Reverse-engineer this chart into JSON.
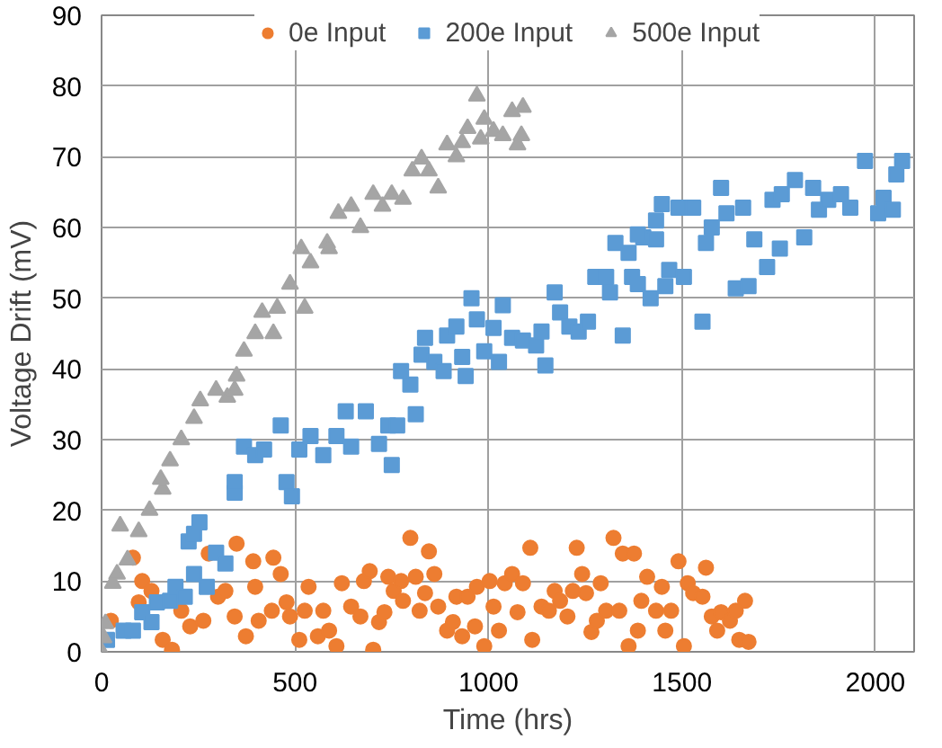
{
  "chart_data": {
    "type": "scatter",
    "xlabel": "Time (hrs)",
    "ylabel": "Voltage Drift (mV)",
    "xlim": [
      0,
      2100
    ],
    "ylim": [
      0,
      90
    ],
    "xticks": [
      0,
      500,
      1000,
      1500,
      2000
    ],
    "yticks": [
      0,
      10,
      20,
      30,
      40,
      50,
      60,
      70,
      80,
      90
    ],
    "grid": true,
    "legend": "top",
    "series": [
      {
        "name": "0e Input",
        "color": "#ed7d31",
        "marker": "circle",
        "x": [
          24,
          81,
          105,
          96,
          129,
          158,
          182,
          206,
          229,
          263,
          277,
          301,
          320,
          349,
          344,
          373,
          397,
          392,
          406,
          440,
          444,
          463,
          478,
          487,
          511,
          525,
          535,
          559,
          573,
          588,
          607,
          621,
          645,
          669,
          678,
          693,
          702,
          717,
          731,
          741,
          755,
          774,
          779,
          798,
          812,
          822,
          836,
          846,
          860,
          870,
          893,
          908,
          917,
          932,
          946,
          965,
          970,
          989,
          1003,
          1013,
          1027,
          1042,
          1061,
          1075,
          1089,
          1108,
          1113,
          1137,
          1156,
          1171,
          1185,
          1204,
          1218,
          1228,
          1242,
          1252,
          1266,
          1280,
          1290,
          1304,
          1323,
          1338,
          1347,
          1362,
          1376,
          1386,
          1395,
          1410,
          1433,
          1448,
          1457,
          1472,
          1491,
          1505,
          1515,
          1529,
          1553,
          1562,
          1577,
          1591,
          1601,
          1624,
          1639,
          1648,
          1663,
          1672
        ],
        "values": [
          4.4,
          13.3,
          10,
          7,
          8.6,
          1.7,
          0.3,
          5.8,
          3.6,
          4.4,
          13.9,
          7.8,
          8.6,
          15.3,
          5,
          2.2,
          9.2,
          12.8,
          4.4,
          5.8,
          13.3,
          11,
          7,
          5,
          1.7,
          5.8,
          9.2,
          2.2,
          5.8,
          3,
          0.8,
          9.7,
          6.4,
          5,
          10,
          11.4,
          0.3,
          4.2,
          5.6,
          10.6,
          8.6,
          10,
          7.2,
          16.1,
          10.6,
          5.8,
          8.3,
          14.2,
          11,
          6.4,
          3,
          4.2,
          7.8,
          2.2,
          7.8,
          3.6,
          9.2,
          0.8,
          10,
          6.4,
          3,
          9.7,
          11,
          5.6,
          9.7,
          14.7,
          1.7,
          6.4,
          5.8,
          8.6,
          7.2,
          5,
          8.6,
          14.7,
          11,
          8.3,
          2.8,
          4.4,
          9.7,
          5.8,
          16.1,
          5.8,
          13.9,
          0.8,
          13.9,
          3,
          7.2,
          10.6,
          5.8,
          9.2,
          3,
          5.8,
          12.8,
          0.8,
          9.7,
          8.3,
          7.8,
          11.9,
          5,
          3,
          5.6,
          4.4,
          5.8,
          1.7,
          7.2,
          1.4
        ]
      },
      {
        "name": "200e Input",
        "color": "#5b9bd5",
        "marker": "square",
        "x": [
          14,
          57,
          81,
          105,
          129,
          143,
          177,
          191,
          215,
          225,
          239,
          253,
          239,
          272,
          296,
          320,
          344,
          492,
          344,
          368,
          397,
          420,
          463,
          478,
          511,
          540,
          573,
          607,
          631,
          645,
          683,
          717,
          750,
          741,
          764,
          812,
          774,
          798,
          836,
          827,
          860,
          884,
          893,
          917,
          932,
          941,
          956,
          970,
          989,
          1027,
          1013,
          1037,
          1061,
          1089,
          1123,
          1147,
          1137,
          1171,
          1185,
          1209,
          1233,
          1257,
          1276,
          1304,
          1314,
          1328,
          1347,
          1362,
          1371,
          1386,
          1400,
          1419,
          1433,
          1457,
          1467,
          1505,
          1553,
          1562,
          1639,
          1672,
          1720,
          1753,
          1816,
          1386,
          1433,
          1448,
          1491,
          1529,
          1577,
          1601,
          1615,
          1658,
          1687,
          1734,
          1758,
          1792,
          1839,
          1854,
          1878,
          1911,
          1935,
          1973,
          2007,
          2021,
          2045,
          2054,
          2069
        ],
        "values": [
          1.7,
          3,
          3,
          5.6,
          4.2,
          7,
          7.2,
          9.2,
          7.8,
          15.6,
          16.7,
          18.3,
          11,
          9.2,
          14,
          12.5,
          22.5,
          22,
          24,
          29,
          27.8,
          28.6,
          32,
          24,
          28.6,
          30.5,
          27.8,
          30.5,
          34,
          29,
          34,
          29.4,
          26.4,
          32,
          32,
          33.6,
          39.7,
          37.8,
          44.4,
          42,
          41,
          39.7,
          44.7,
          46,
          41.7,
          39,
          50,
          47,
          42.5,
          41,
          45.8,
          49,
          44.4,
          44,
          43.3,
          40.5,
          45.3,
          50.8,
          48,
          46,
          45.3,
          46.7,
          53,
          53,
          50.8,
          57.8,
          44.7,
          56.4,
          53,
          52,
          58.6,
          50,
          58.3,
          51.7,
          54,
          53,
          46.7,
          57.8,
          51.4,
          51.7,
          54.4,
          57,
          58.6,
          59,
          61,
          63.3,
          62.8,
          62.8,
          60,
          65.6,
          62,
          62.8,
          58.3,
          63.9,
          64.7,
          66.7,
          65.6,
          62.5,
          63.9,
          64.7,
          62.8,
          69.4,
          62,
          64.2,
          62.5,
          67.5,
          69.4
        ]
      },
      {
        "name": "500e Input",
        "color": "#a5a5a5",
        "marker": "triangle",
        "x": [
          0,
          5,
          10,
          29,
          40,
          67,
          48,
          96,
          124,
          158,
          153,
          177,
          206,
          239,
          255,
          296,
          325,
          344,
          349,
          368,
          397,
          415,
          444,
          454,
          487,
          525,
          516,
          540,
          583,
          588,
          612,
          645,
          669,
          702,
          726,
          750,
          779,
          803,
          827,
          846,
          870,
          893,
          917,
          932,
          946,
          970,
          989,
          980,
          1013,
          1037,
          1061,
          1075,
          1089,
          1085
        ],
        "values": [
          0,
          2,
          4,
          9.7,
          11,
          13,
          17.8,
          17,
          20,
          23,
          24.4,
          27,
          30,
          33,
          35.5,
          37,
          36,
          37,
          39,
          42.5,
          45,
          48,
          45,
          48.6,
          52,
          48.6,
          57,
          55,
          57.8,
          57,
          62,
          63,
          60,
          64.7,
          63,
          64.7,
          64,
          68,
          69.7,
          68,
          65.6,
          71.7,
          70,
          72,
          74,
          78.6,
          75.3,
          72.5,
          73.6,
          73,
          76.4,
          71.7,
          77,
          73
        ]
      }
    ]
  }
}
